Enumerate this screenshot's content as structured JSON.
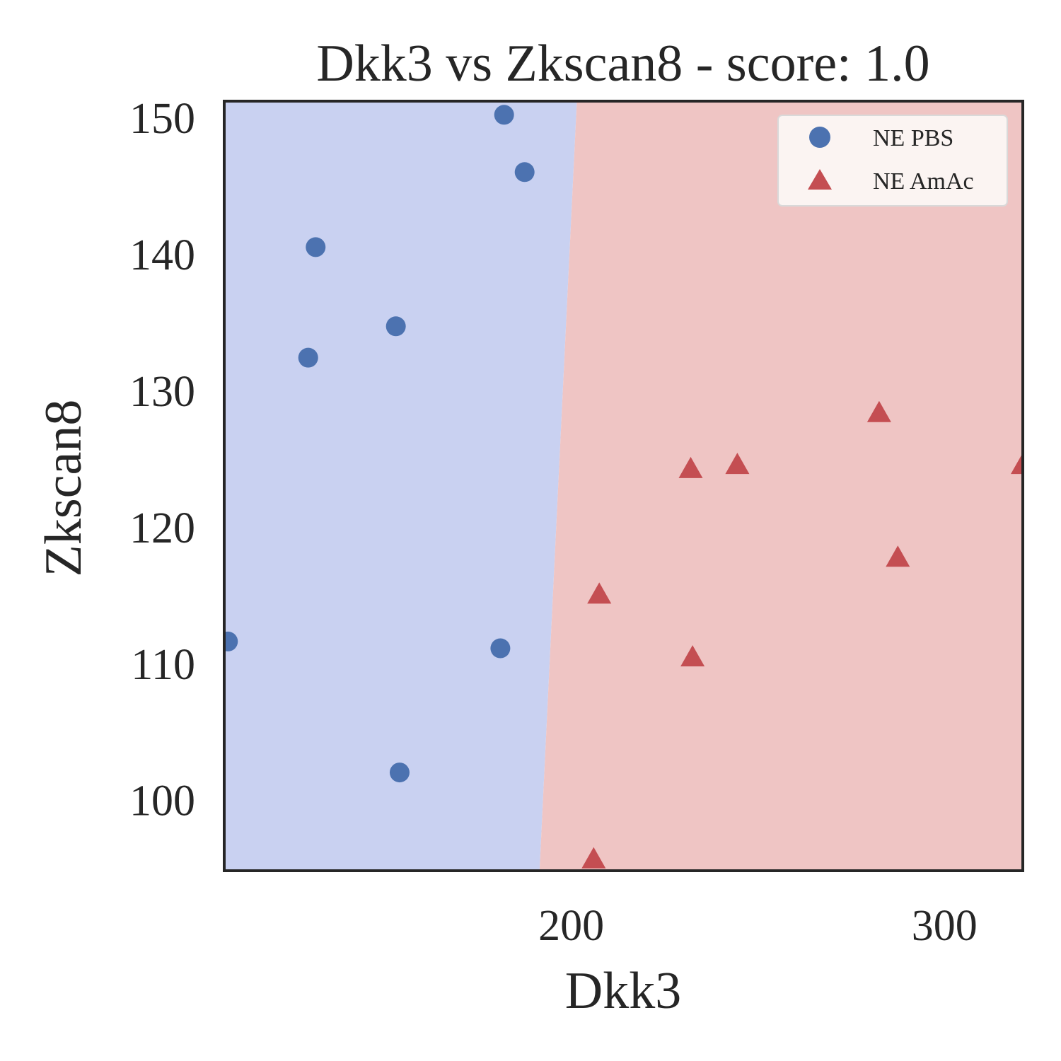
{
  "chart_data": {
    "type": "scatter",
    "title": "Dkk3 vs Zkscan8 - score: 1.0",
    "xlabel": "Dkk3",
    "ylabel": "Zkscan8",
    "xlim": [
      107,
      321
    ],
    "ylim": [
      94.8,
      151.2
    ],
    "xticks": [
      200,
      300
    ],
    "yticks": [
      100,
      110,
      120,
      130,
      140,
      150
    ],
    "grid": false,
    "legend": "top-right",
    "decision_regions": {
      "boundary": [
        [
          201.5,
          151.2
        ],
        [
          191.5,
          94.8
        ]
      ],
      "left_class": "NE PBS",
      "right_class": "NE AmAc",
      "left_color": "#c9d1f1",
      "right_color": "#efc5c4"
    },
    "series": [
      {
        "name": "NE PBS",
        "marker": "circle",
        "color": "#4c72b0",
        "points": [
          [
            182,
            150.2
          ],
          [
            187.5,
            146.0
          ],
          [
            131.5,
            140.5
          ],
          [
            153.0,
            134.7
          ],
          [
            129.5,
            132.4
          ],
          [
            108.0,
            111.6
          ],
          [
            181.0,
            111.1
          ],
          [
            154.0,
            102.0
          ]
        ]
      },
      {
        "name": "NE AmAc",
        "marker": "triangle",
        "color": "#c44e52",
        "points": [
          [
            282.5,
            128.3
          ],
          [
            232.0,
            124.2
          ],
          [
            244.5,
            124.5
          ],
          [
            321.0,
            124.5
          ],
          [
            287.5,
            117.7
          ],
          [
            207.5,
            115.0
          ],
          [
            232.5,
            110.4
          ],
          [
            206.0,
            95.6
          ]
        ]
      }
    ]
  }
}
